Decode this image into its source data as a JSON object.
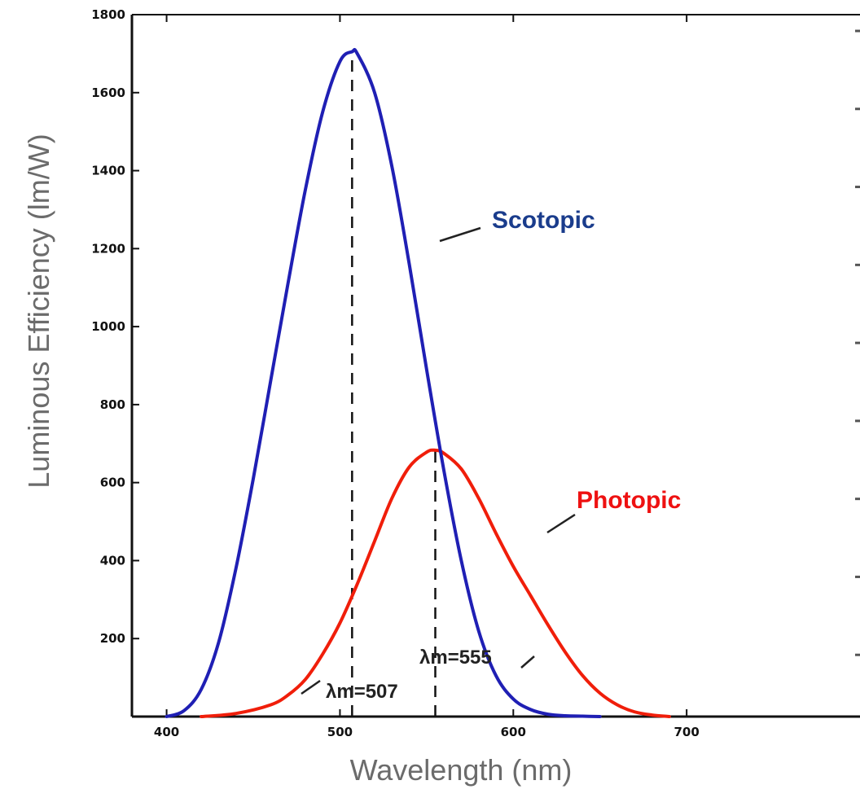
{
  "chart_data": {
    "type": "line",
    "xlabel": "Wavelength (nm)",
    "ylabel": "Luminous Efficiency (lm/W)",
    "xlim": [
      380,
      800
    ],
    "ylim": [
      0,
      1800
    ],
    "x_ticks": [
      400,
      500,
      600,
      700
    ],
    "x_tick_labels": [
      "400",
      "500",
      "600",
      "700"
    ],
    "y_ticks": [
      200,
      400,
      600,
      800,
      1000,
      1200,
      1400,
      1600,
      1800
    ],
    "y_tick_labels": [
      "200",
      "400",
      "600",
      "800",
      "1000",
      "1200",
      "1400",
      "1600",
      "1800"
    ],
    "grid": false,
    "legend": "none",
    "series": [
      {
        "name": "Scotopic",
        "color": "#1f1fb4",
        "x": [
          400,
          410,
          420,
          430,
          440,
          450,
          460,
          470,
          480,
          490,
          500,
          507,
          510,
          520,
          530,
          540,
          550,
          560,
          570,
          580,
          590,
          600,
          610,
          620,
          630,
          640,
          650
        ],
        "y": [
          0,
          15,
          70,
          190,
          380,
          610,
          860,
          1110,
          1350,
          1550,
          1680,
          1705,
          1700,
          1600,
          1410,
          1160,
          890,
          630,
          400,
          220,
          105,
          45,
          18,
          6,
          2,
          1,
          0
        ]
      },
      {
        "name": "Photopic",
        "color": "#f01e0a",
        "x": [
          420,
          440,
          460,
          470,
          480,
          490,
          500,
          510,
          520,
          530,
          540,
          550,
          555,
          560,
          570,
          580,
          590,
          600,
          610,
          620,
          630,
          640,
          650,
          660,
          670,
          680,
          690
        ],
        "y": [
          0,
          8,
          30,
          55,
          95,
          160,
          240,
          340,
          450,
          560,
          640,
          678,
          683,
          675,
          635,
          560,
          470,
          385,
          310,
          235,
          165,
          105,
          60,
          30,
          12,
          4,
          0
        ]
      }
    ],
    "annotations": [
      {
        "text": "λm=507",
        "x": 507,
        "dash_from": 0,
        "dash_to": 1700
      },
      {
        "text": "λm=555",
        "x": 555,
        "dash_from": 0,
        "dash_to": 683
      }
    ]
  }
}
